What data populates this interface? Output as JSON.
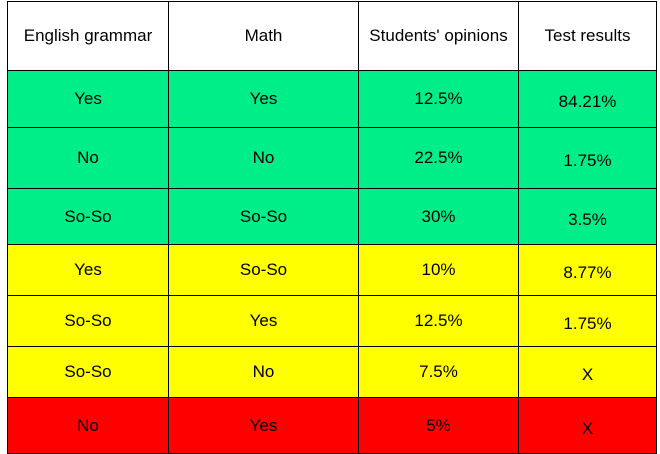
{
  "table": {
    "headers": [
      "English grammar",
      "Math",
      "Students' opinions",
      "Test results"
    ],
    "row_colors": {
      "green": "#00ee88",
      "yellow": "#ffff00",
      "red": "#ff0000"
    },
    "rows": [
      {
        "color": "green",
        "cells": [
          "Yes",
          "Yes",
          "12.5%",
          "84.21%"
        ]
      },
      {
        "color": "green",
        "cells": [
          "No",
          "No",
          "22.5%",
          "1.75%"
        ]
      },
      {
        "color": "green",
        "cells": [
          "So-So",
          "So-So",
          "30%",
          "3.5%"
        ]
      },
      {
        "color": "yellow",
        "cells": [
          "Yes",
          "So-So",
          "10%",
          "8.77%"
        ]
      },
      {
        "color": "yellow",
        "cells": [
          "So-So",
          "Yes",
          "12.5%",
          "1.75%"
        ]
      },
      {
        "color": "yellow",
        "cells": [
          "So-So",
          "No",
          "7.5%",
          "X"
        ]
      },
      {
        "color": "red",
        "cells": [
          "No",
          "Yes",
          "5%",
          "X"
        ]
      }
    ]
  }
}
